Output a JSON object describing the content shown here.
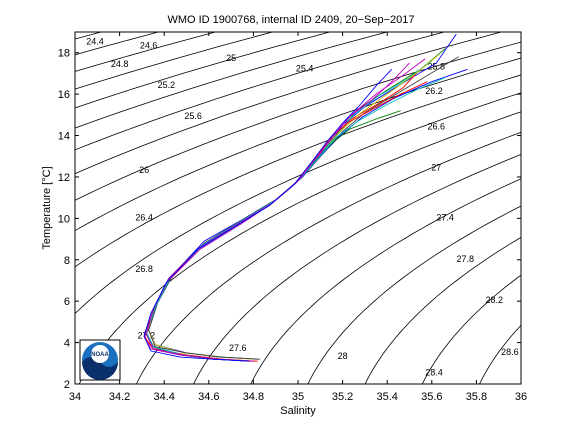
{
  "chart_data": {
    "type": "line",
    "title": "WMO ID 1900768, internal ID 2409, 20−Sep−2017",
    "xlabel": "Salinity",
    "ylabel": "Temperature [°C]",
    "xlim": [
      34,
      36
    ],
    "ylim": [
      2,
      19
    ],
    "xticks": [
      "34",
      "34.2",
      "34.4",
      "34.6",
      "34.8",
      "35",
      "35.2",
      "35.4",
      "35.6",
      "35.8",
      "36"
    ],
    "yticks": [
      "2",
      "4",
      "6",
      "8",
      "10",
      "12",
      "14",
      "16",
      "18"
    ],
    "xtick_values": [
      34,
      34.2,
      34.4,
      34.6,
      34.8,
      35,
      35.2,
      35.4,
      35.6,
      35.8,
      36
    ],
    "ytick_values": [
      2,
      4,
      6,
      8,
      10,
      12,
      14,
      16,
      18
    ],
    "density_contours": {
      "levels": [
        24.4,
        24.6,
        24.8,
        25.0,
        25.2,
        25.4,
        25.6,
        25.8,
        26.0,
        26.2,
        26.4,
        26.6,
        26.8,
        27.0,
        27.2,
        27.4,
        27.6,
        27.8,
        28.0,
        28.2,
        28.4,
        28.6
      ],
      "labels": [
        {
          "text": "24.4",
          "x": 34.09,
          "y": 18.4
        },
        {
          "text": "24.6",
          "x": 34.33,
          "y": 18.2
        },
        {
          "text": "24.8",
          "x": 34.2,
          "y": 17.3
        },
        {
          "text": "25",
          "x": 34.7,
          "y": 17.6
        },
        {
          "text": "25.2",
          "x": 34.41,
          "y": 16.3
        },
        {
          "text": "25.4",
          "x": 35.03,
          "y": 17.1
        },
        {
          "text": "25.6",
          "x": 34.53,
          "y": 14.8
        },
        {
          "text": "25.8",
          "x": 35.62,
          "y": 17.2
        },
        {
          "text": "26",
          "x": 34.31,
          "y": 12.2
        },
        {
          "text": "26.2",
          "x": 35.61,
          "y": 16.0
        },
        {
          "text": "26.4",
          "x": 34.31,
          "y": 9.9
        },
        {
          "text": "26.6",
          "x": 35.62,
          "y": 14.3
        },
        {
          "text": "26.8",
          "x": 34.31,
          "y": 7.4
        },
        {
          "text": "27",
          "x": 35.62,
          "y": 12.3
        },
        {
          "text": "27.2",
          "x": 34.32,
          "y": 4.2
        },
        {
          "text": "27.4",
          "x": 35.66,
          "y": 9.9
        },
        {
          "text": "27.6",
          "x": 34.73,
          "y": 3.6
        },
        {
          "text": "27.8",
          "x": 35.75,
          "y": 7.9
        },
        {
          "text": "28",
          "x": 35.2,
          "y": 3.2
        },
        {
          "text": "28.2",
          "x": 35.88,
          "y": 5.9
        },
        {
          "text": "28.4",
          "x": 35.61,
          "y": 2.4
        },
        {
          "text": "28.6",
          "x": 35.95,
          "y": 3.4
        }
      ]
    },
    "series": [
      {
        "color": "#0000ff",
        "points": [
          [
            35.71,
            18.9
          ],
          [
            35.62,
            17.5
          ],
          [
            35.45,
            16.4
          ],
          [
            35.3,
            15.4
          ],
          [
            35.2,
            14.5
          ],
          [
            35.12,
            13.3
          ],
          [
            35.02,
            12.0
          ],
          [
            34.9,
            10.9
          ],
          [
            34.76,
            10.0
          ],
          [
            34.58,
            8.9
          ],
          [
            34.44,
            7.3
          ],
          [
            34.37,
            5.9
          ],
          [
            34.33,
            4.6
          ],
          [
            34.36,
            3.9
          ],
          [
            34.5,
            3.5
          ],
          [
            34.64,
            3.3
          ],
          [
            34.82,
            3.2
          ]
        ]
      },
      {
        "color": "#008000",
        "points": [
          [
            35.66,
            18.2
          ],
          [
            35.55,
            17.2
          ],
          [
            35.4,
            16.2
          ],
          [
            35.26,
            15.2
          ],
          [
            35.19,
            14.2
          ],
          [
            35.1,
            13.1
          ],
          [
            35.01,
            11.9
          ],
          [
            34.89,
            10.8
          ],
          [
            34.75,
            9.9
          ],
          [
            34.57,
            8.7
          ],
          [
            34.43,
            7.2
          ],
          [
            34.36,
            5.8
          ],
          [
            34.32,
            4.5
          ],
          [
            34.35,
            3.8
          ],
          [
            34.48,
            3.4
          ],
          [
            34.62,
            3.2
          ],
          [
            34.78,
            3.1
          ]
        ]
      },
      {
        "color": "#ff0000",
        "points": [
          [
            35.54,
            17.1
          ],
          [
            35.47,
            16.3
          ],
          [
            35.37,
            15.6
          ],
          [
            35.24,
            14.8
          ],
          [
            35.16,
            13.9
          ],
          [
            35.08,
            12.9
          ],
          [
            35.0,
            11.8
          ],
          [
            34.88,
            10.7
          ],
          [
            34.74,
            9.8
          ],
          [
            34.56,
            8.6
          ],
          [
            34.42,
            7.1
          ],
          [
            34.35,
            5.6
          ],
          [
            34.32,
            4.4
          ],
          [
            34.36,
            3.7
          ],
          [
            34.5,
            3.4
          ],
          [
            34.66,
            3.2
          ],
          [
            34.82,
            3.1
          ]
        ]
      },
      {
        "color": "#00bfbf",
        "points": [
          [
            35.6,
            17.6
          ],
          [
            35.5,
            16.8
          ],
          [
            35.36,
            15.9
          ],
          [
            35.25,
            15.0
          ],
          [
            35.17,
            14.0
          ],
          [
            35.09,
            13.0
          ],
          [
            35.0,
            11.8
          ],
          [
            34.89,
            10.8
          ],
          [
            34.75,
            9.8
          ],
          [
            34.57,
            8.6
          ],
          [
            34.43,
            7.2
          ],
          [
            34.36,
            5.7
          ],
          [
            34.32,
            4.5
          ],
          [
            34.35,
            3.8
          ],
          [
            34.49,
            3.4
          ],
          [
            34.64,
            3.2
          ],
          [
            34.8,
            3.1
          ]
        ]
      },
      {
        "color": "#bf00bf",
        "points": [
          [
            35.5,
            17.5
          ],
          [
            35.42,
            16.6
          ],
          [
            35.33,
            15.7
          ],
          [
            35.23,
            14.9
          ],
          [
            35.15,
            13.9
          ],
          [
            35.08,
            12.8
          ],
          [
            34.99,
            11.7
          ],
          [
            34.88,
            10.7
          ],
          [
            34.74,
            9.7
          ],
          [
            34.56,
            8.5
          ],
          [
            34.42,
            7.0
          ],
          [
            34.35,
            5.5
          ],
          [
            34.31,
            4.4
          ],
          [
            34.34,
            3.7
          ],
          [
            34.47,
            3.4
          ],
          [
            34.63,
            3.2
          ],
          [
            34.79,
            3.1
          ]
        ]
      },
      {
        "color": "#bfbf00",
        "points": [
          [
            35.63,
            17.9
          ],
          [
            35.53,
            17.0
          ],
          [
            35.4,
            16.0
          ],
          [
            35.27,
            15.0
          ],
          [
            35.18,
            14.1
          ],
          [
            35.1,
            13.0
          ],
          [
            35.01,
            11.9
          ],
          [
            34.89,
            10.8
          ],
          [
            34.75,
            9.9
          ],
          [
            34.58,
            8.8
          ],
          [
            34.44,
            7.3
          ],
          [
            34.36,
            5.8
          ],
          [
            34.33,
            4.6
          ],
          [
            34.36,
            3.9
          ],
          [
            34.49,
            3.5
          ],
          [
            34.65,
            3.3
          ],
          [
            34.8,
            3.2
          ]
        ]
      },
      {
        "color": "#404040",
        "points": [
          [
            35.72,
            17.8
          ],
          [
            35.58,
            16.9
          ],
          [
            35.44,
            16.0
          ],
          [
            35.3,
            15.1
          ],
          [
            35.2,
            14.2
          ],
          [
            35.11,
            13.1
          ],
          [
            35.02,
            12.0
          ],
          [
            34.9,
            10.9
          ],
          [
            34.76,
            10.0
          ],
          [
            34.58,
            8.8
          ],
          [
            34.44,
            7.3
          ],
          [
            34.37,
            5.9
          ],
          [
            34.33,
            4.6
          ],
          [
            34.36,
            3.8
          ],
          [
            34.5,
            3.5
          ],
          [
            34.66,
            3.3
          ],
          [
            34.83,
            3.2
          ]
        ]
      },
      {
        "color": "#0000ff",
        "points": [
          [
            35.76,
            17.2
          ],
          [
            35.6,
            16.6
          ],
          [
            35.43,
            15.8
          ],
          [
            35.29,
            14.9
          ],
          [
            35.19,
            14.0
          ],
          [
            35.1,
            13.0
          ],
          [
            35.01,
            11.9
          ],
          [
            34.89,
            10.8
          ],
          [
            34.75,
            9.9
          ],
          [
            34.57,
            8.7
          ],
          [
            34.43,
            7.2
          ],
          [
            34.36,
            5.8
          ],
          [
            34.32,
            4.5
          ],
          [
            34.35,
            3.8
          ],
          [
            34.48,
            3.4
          ],
          [
            34.62,
            3.2
          ],
          [
            34.79,
            3.1
          ]
        ]
      },
      {
        "color": "#008000",
        "points": [
          [
            35.46,
            15.2
          ],
          [
            35.35,
            14.8
          ],
          [
            35.23,
            14.3
          ],
          [
            35.15,
            13.6
          ],
          [
            35.07,
            12.7
          ],
          [
            34.99,
            11.7
          ],
          [
            34.88,
            10.7
          ],
          [
            34.74,
            9.8
          ],
          [
            34.56,
            8.6
          ],
          [
            34.42,
            7.1
          ],
          [
            34.35,
            5.6
          ],
          [
            34.32,
            4.4
          ],
          [
            34.35,
            3.7
          ],
          [
            34.48,
            3.4
          ],
          [
            34.63,
            3.2
          ],
          [
            34.78,
            3.1
          ]
        ]
      },
      {
        "color": "#ff0000",
        "points": [
          [
            35.58,
            16.6
          ],
          [
            35.46,
            16.0
          ],
          [
            35.34,
            15.3
          ],
          [
            35.22,
            14.6
          ],
          [
            35.14,
            13.8
          ],
          [
            35.07,
            12.8
          ],
          [
            34.99,
            11.7
          ],
          [
            34.88,
            10.7
          ],
          [
            34.74,
            9.8
          ],
          [
            34.56,
            8.6
          ],
          [
            34.42,
            7.0
          ],
          [
            34.35,
            5.5
          ],
          [
            34.31,
            4.3
          ],
          [
            34.35,
            3.7
          ],
          [
            34.49,
            3.4
          ],
          [
            34.65,
            3.2
          ],
          [
            34.81,
            3.1
          ]
        ]
      },
      {
        "color": "#00bfbf",
        "points": [
          [
            35.66,
            16.8
          ],
          [
            35.53,
            16.2
          ],
          [
            35.4,
            15.5
          ],
          [
            35.27,
            14.7
          ],
          [
            35.17,
            13.9
          ],
          [
            35.09,
            12.9
          ],
          [
            35.0,
            11.8
          ],
          [
            34.89,
            10.8
          ],
          [
            34.75,
            9.9
          ],
          [
            34.57,
            8.7
          ],
          [
            34.43,
            7.2
          ],
          [
            34.36,
            5.7
          ],
          [
            34.32,
            4.5
          ],
          [
            34.35,
            3.8
          ],
          [
            34.48,
            3.4
          ],
          [
            34.63,
            3.2
          ],
          [
            34.8,
            3.1
          ]
        ]
      },
      {
        "color": "#bf00bf",
        "points": [
          [
            35.57,
            17.7
          ],
          [
            35.47,
            16.9
          ],
          [
            35.35,
            16.0
          ],
          [
            35.24,
            15.0
          ],
          [
            35.16,
            14.0
          ],
          [
            35.08,
            12.9
          ],
          [
            35.0,
            11.8
          ],
          [
            34.88,
            10.7
          ],
          [
            34.74,
            9.8
          ],
          [
            34.56,
            8.6
          ],
          [
            34.42,
            7.1
          ],
          [
            34.35,
            5.6
          ],
          [
            34.32,
            4.4
          ],
          [
            34.35,
            3.7
          ],
          [
            34.48,
            3.4
          ],
          [
            34.64,
            3.2
          ],
          [
            34.8,
            3.1
          ]
        ]
      },
      {
        "color": "#0000ff",
        "points": [
          [
            35.42,
            17.2
          ],
          [
            35.35,
            16.4
          ],
          [
            35.28,
            15.5
          ],
          [
            35.2,
            14.6
          ],
          [
            35.13,
            13.7
          ],
          [
            35.06,
            12.7
          ],
          [
            34.98,
            11.6
          ],
          [
            34.87,
            10.6
          ],
          [
            34.73,
            9.7
          ],
          [
            34.55,
            8.5
          ],
          [
            34.41,
            6.9
          ],
          [
            34.34,
            5.4
          ],
          [
            34.31,
            4.3
          ],
          [
            34.34,
            3.6
          ],
          [
            34.47,
            3.3
          ],
          [
            34.62,
            3.2
          ],
          [
            34.78,
            3.1
          ]
        ]
      }
    ]
  },
  "logo": {
    "text": "NOAA"
  }
}
